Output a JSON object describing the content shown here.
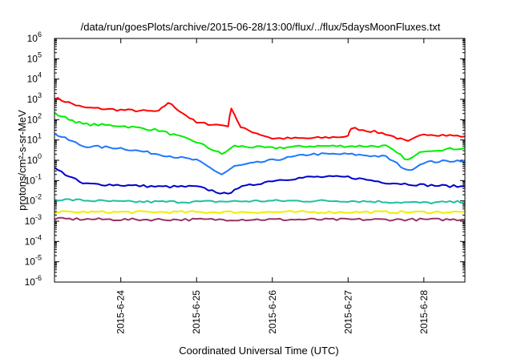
{
  "chart_data": {
    "type": "line",
    "title": "/data/run/goesPlots/archive/2015-06-28/13:00/flux/../flux/5daysMoonFluxes.txt",
    "xlabel": "Coordinated Universal Time (UTC)",
    "ylabel": "protons/cm²-s-sr-MeV",
    "y_scale": "log",
    "ylim": [
      1e-06,
      1000000.0
    ],
    "xlim_days": [
      "2015-06-23T03:00",
      "2015-06-28T13:00"
    ],
    "x_ticks": [
      "2015-6-24",
      "2015-6-25",
      "2015-6-26",
      "2015-6-27",
      "2015-6-28"
    ],
    "y_ticks": [
      {
        "base": "10",
        "exp": "-6"
      },
      {
        "base": "10",
        "exp": "-5"
      },
      {
        "base": "10",
        "exp": "-4"
      },
      {
        "base": "10",
        "exp": "-3"
      },
      {
        "base": "10",
        "exp": "-2"
      },
      {
        "base": "10",
        "exp": "-1"
      },
      {
        "base": "10",
        "exp": "0"
      },
      {
        "base": "10",
        "exp": "1"
      },
      {
        "base": "10",
        "exp": "2"
      },
      {
        "base": "10",
        "exp": "3"
      },
      {
        "base": "10",
        "exp": "4"
      },
      {
        "base": "10",
        "exp": "5"
      },
      {
        "base": "10",
        "exp": "6"
      }
    ],
    "grid": false,
    "series": [
      {
        "color": "#ff0000",
        "x": [
          "2015-06-23T03:00",
          "2015-06-23T12:00",
          "2015-06-24T00:00",
          "2015-06-24T12:00",
          "2015-06-24T15:00",
          "2015-06-25T00:00",
          "2015-06-25T10:00",
          "2015-06-25T11:00",
          "2015-06-25T14:00",
          "2015-06-26T00:00",
          "2015-06-26T12:00",
          "2015-06-27T00:00",
          "2015-06-27T01:00",
          "2015-06-27T12:00",
          "2015-06-27T19:00",
          "2015-06-28T00:00",
          "2015-06-28T13:00"
        ],
        "y": [
          1200,
          400,
          300,
          250,
          700,
          70,
          50,
          400,
          40,
          12,
          12,
          15,
          40,
          20,
          8,
          20,
          15
        ]
      },
      {
        "color": "#00ee00",
        "x": [
          "2015-06-23T03:00",
          "2015-06-23T12:00",
          "2015-06-24T00:00",
          "2015-06-24T12:00",
          "2015-06-25T00:00",
          "2015-06-25T08:00",
          "2015-06-25T12:00",
          "2015-06-26T00:00",
          "2015-06-26T12:00",
          "2015-06-27T00:00",
          "2015-06-27T12:00",
          "2015-06-27T19:00",
          "2015-06-28T00:00",
          "2015-06-28T13:00"
        ],
        "y": [
          200,
          60,
          50,
          30,
          8,
          2,
          5,
          4,
          5,
          5,
          5,
          1,
          3,
          4
        ]
      },
      {
        "color": "#1e78ff",
        "x": [
          "2015-06-23T03:00",
          "2015-06-23T12:00",
          "2015-06-24T00:00",
          "2015-06-24T12:00",
          "2015-06-25T00:00",
          "2015-06-25T08:00",
          "2015-06-25T12:00",
          "2015-06-26T00:00",
          "2015-06-26T12:00",
          "2015-06-27T00:00",
          "2015-06-27T12:00",
          "2015-06-27T19:00",
          "2015-06-28T00:00",
          "2015-06-28T13:00"
        ],
        "y": [
          20,
          5,
          4,
          2,
          1,
          0.2,
          0.5,
          1,
          2,
          2,
          1.5,
          0.3,
          0.8,
          1
        ]
      },
      {
        "color": "#0000cc",
        "x": [
          "2015-06-23T03:00",
          "2015-06-23T12:00",
          "2015-06-24T00:00",
          "2015-06-24T12:00",
          "2015-06-25T00:00",
          "2015-06-25T10:00",
          "2015-06-25T12:00",
          "2015-06-26T00:00",
          "2015-06-26T12:00",
          "2015-06-27T00:00",
          "2015-06-27T12:00",
          "2015-06-28T00:00",
          "2015-06-28T13:00"
        ],
        "y": [
          0.4,
          0.07,
          0.06,
          0.05,
          0.05,
          0.02,
          0.04,
          0.1,
          0.15,
          0.15,
          0.08,
          0.06,
          0.05
        ]
      },
      {
        "color": "#20c0a0",
        "x": [
          "2015-06-23T03:00",
          "2015-06-24T00:00",
          "2015-06-25T00:00",
          "2015-06-26T00:00",
          "2015-06-27T00:00",
          "2015-06-28T00:00",
          "2015-06-28T13:00"
        ],
        "y": [
          0.012,
          0.009,
          0.009,
          0.01,
          0.01,
          0.008,
          0.009
        ]
      },
      {
        "color": "#eeee00",
        "x": [
          "2015-06-23T03:00",
          "2015-06-24T00:00",
          "2015-06-25T00:00",
          "2015-06-26T00:00",
          "2015-06-27T00:00",
          "2015-06-28T00:00",
          "2015-06-28T13:00"
        ],
        "y": [
          0.0028,
          0.0028,
          0.0028,
          0.0028,
          0.0028,
          0.0028,
          0.0028
        ]
      },
      {
        "color": "#993366",
        "x": [
          "2015-06-23T03:00",
          "2015-06-24T00:00",
          "2015-06-25T00:00",
          "2015-06-26T00:00",
          "2015-06-27T00:00",
          "2015-06-28T00:00",
          "2015-06-28T13:00"
        ],
        "y": [
          0.0013,
          0.0012,
          0.0012,
          0.0012,
          0.0012,
          0.0012,
          0.0012
        ]
      }
    ]
  }
}
